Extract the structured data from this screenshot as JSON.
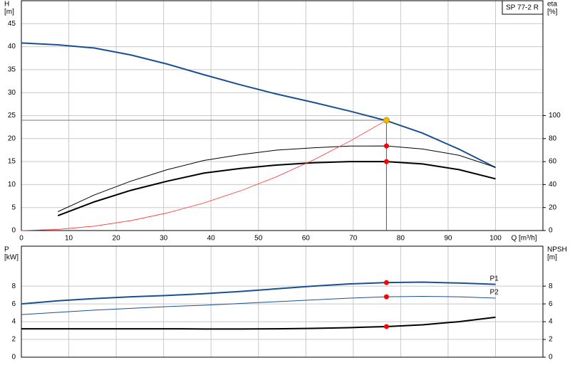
{
  "chart_data": [
    {
      "type": "line",
      "annotation": "SP 77-2 R",
      "xlabel": "Q [m³/h]",
      "ylabel": [
        "H",
        "[m]"
      ],
      "y2label": [
        "eta",
        "[%]"
      ],
      "xlim": [
        0,
        110
      ],
      "xticks": [
        0,
        10,
        20,
        30,
        40,
        50,
        60,
        70,
        80,
        90,
        100
      ],
      "ylim": [
        0,
        50
      ],
      "yticks": [
        0,
        5,
        10,
        15,
        20,
        25,
        30,
        35,
        40,
        45
      ],
      "y2lim": [
        0,
        200
      ],
      "y2ticks": [
        0,
        20,
        40,
        60,
        80,
        100
      ],
      "grid": true,
      "show_xtick_labels": true,
      "operating_point": {
        "x": 77,
        "y": 24,
        "color": "#f5b800"
      },
      "series": [
        {
          "color": "#1a4f91",
          "linewidth": 2,
          "x": [
            0,
            7.7,
            15.4,
            23.1,
            30.8,
            38.5,
            46.2,
            53.8,
            61.5,
            69.2,
            77,
            84.6,
            92.3,
            100
          ],
          "values": [
            40.8,
            40.4,
            39.7,
            38.2,
            36.2,
            33.9,
            31.7,
            29.7,
            27.9,
            26.0,
            23.9,
            21.2,
            17.7,
            13.7
          ]
        },
        {
          "color": "#000000",
          "linewidth": 1,
          "axis": "y2",
          "x": [
            7.7,
            15.4,
            23.1,
            30.8,
            38.5,
            46.2,
            53.8,
            61.5,
            69.2,
            77,
            84.6,
            92.3,
            100
          ],
          "values": [
            16.4,
            31,
            43,
            53,
            61,
            66,
            70,
            72,
            73.5,
            73.6,
            71,
            65.5,
            55
          ],
          "point": {
            "x": 77,
            "y": 73.6,
            "color": "#ff0000"
          }
        },
        {
          "color": "#000000",
          "linewidth": 2,
          "axis": "y2",
          "x": [
            7.7,
            15.4,
            23.1,
            30.8,
            38.5,
            46.2,
            53.8,
            61.5,
            69.2,
            77,
            84.6,
            92.3,
            100
          ],
          "values": [
            13,
            25,
            35,
            43,
            50,
            54,
            57,
            59,
            60,
            60,
            58,
            53,
            45
          ],
          "point": {
            "x": 77,
            "y": 60,
            "color": "#ff0000"
          }
        },
        {
          "color": "#ff3030",
          "linewidth": 0.8,
          "x": [
            0,
            7.7,
            15.4,
            23.1,
            30.8,
            38.5,
            46.2,
            53.8,
            61.5,
            69.2,
            77
          ],
          "values": [
            0,
            0.24,
            0.96,
            2.16,
            3.84,
            6.0,
            8.64,
            11.7,
            15.3,
            19.4,
            24
          ]
        }
      ]
    },
    {
      "type": "line",
      "ylabel": [
        "P",
        "[kW]"
      ],
      "y2label": [
        "NPSH",
        "[m]"
      ],
      "xlim": [
        0,
        110
      ],
      "xticks": [
        0,
        10,
        20,
        30,
        40,
        50,
        60,
        70,
        80,
        90,
        100
      ],
      "ylim": [
        0,
        12.5
      ],
      "yticks": [
        0,
        2,
        4,
        6,
        8
      ],
      "y2lim": [
        0,
        12.5
      ],
      "y2ticks": [
        0,
        2,
        4,
        6,
        8
      ],
      "grid": true,
      "show_xtick_labels": false,
      "series": [
        {
          "name": "P1",
          "color": "#1a4f91",
          "linewidth": 2,
          "x": [
            0,
            7.7,
            15.4,
            23.1,
            30.8,
            38.5,
            46.2,
            53.8,
            61.5,
            69.2,
            77,
            84.6,
            92.3,
            100
          ],
          "values": [
            6.0,
            6.35,
            6.6,
            6.8,
            6.95,
            7.15,
            7.4,
            7.7,
            8.0,
            8.25,
            8.4,
            8.45,
            8.35,
            8.2
          ],
          "point": {
            "x": 77,
            "y": 8.4,
            "color": "#ff0000"
          }
        },
        {
          "name": "P2",
          "color": "#1a4f91",
          "linewidth": 1,
          "x": [
            0,
            7.7,
            15.4,
            23.1,
            30.8,
            38.5,
            46.2,
            53.8,
            61.5,
            69.2,
            77,
            84.6,
            92.3,
            100
          ],
          "values": [
            4.8,
            5.05,
            5.3,
            5.5,
            5.7,
            5.85,
            6.05,
            6.25,
            6.45,
            6.65,
            6.8,
            6.85,
            6.8,
            6.65
          ],
          "point": {
            "x": 77,
            "y": 6.8,
            "color": "#ff0000"
          }
        },
        {
          "color": "#000000",
          "linewidth": 2,
          "axis": "y2",
          "x": [
            0,
            7.7,
            15.4,
            23.1,
            30.8,
            38.5,
            46.2,
            53.8,
            61.5,
            69.2,
            77,
            84.6,
            92.3,
            100
          ],
          "values": [
            3.2,
            3.2,
            3.2,
            3.2,
            3.2,
            3.18,
            3.18,
            3.2,
            3.25,
            3.33,
            3.45,
            3.65,
            4.0,
            4.5
          ],
          "point": {
            "x": 77,
            "y": 3.45,
            "color": "#ff0000"
          }
        }
      ]
    }
  ]
}
